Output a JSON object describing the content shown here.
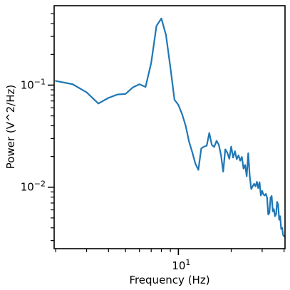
{
  "chart_data": {
    "type": "line",
    "title": "",
    "xlabel": "Frequency (Hz)",
    "ylabel": "Power (V^2/Hz)",
    "x_scale": "log",
    "y_scale": "log",
    "xlim": [
      1.96,
      40.5
    ],
    "ylim": [
      0.0025,
      0.6
    ],
    "grid": false,
    "legend": "none",
    "x_major_tick_labels": [
      {
        "value": 10,
        "base": "10",
        "exp": "1"
      }
    ],
    "y_major_tick_labels": [
      {
        "value": 0.1,
        "base": "10",
        "exp": "−1"
      },
      {
        "value": 0.01,
        "base": "10",
        "exp": "−2"
      }
    ],
    "x_minor_ticks": [
      2,
      3,
      4,
      5,
      6,
      7,
      8,
      9,
      20,
      30,
      40
    ],
    "y_minor_ticks": [
      0.003,
      0.004,
      0.005,
      0.006,
      0.007,
      0.008,
      0.009,
      0.02,
      0.03,
      0.04,
      0.05,
      0.06,
      0.07,
      0.08,
      0.09,
      0.2,
      0.3,
      0.4,
      0.5
    ],
    "series": [
      {
        "color": "#1f77b4",
        "x": [
          2.0,
          2.5,
          3.0,
          3.5,
          4.0,
          4.5,
          5.0,
          5.5,
          6.0,
          6.5,
          7.0,
          7.5,
          8.0,
          8.5,
          9.0,
          9.5,
          10.0,
          10.5,
          11.0,
          11.5,
          12.0,
          12.5,
          13.0,
          13.5,
          14.0,
          14.5,
          15.0,
          15.5,
          16.0,
          16.5,
          17.0,
          17.5,
          18.0,
          18.5,
          19.0,
          19.5,
          20.0,
          20.5,
          21.0,
          21.5,
          22.0,
          22.5,
          23.0,
          23.5,
          24.0,
          24.5,
          25.0,
          25.5,
          26.0,
          26.5,
          27.0,
          27.5,
          28.0,
          28.5,
          29.0,
          29.5,
          30.0,
          30.5,
          31.0,
          31.5,
          32.0,
          32.5,
          33.0,
          33.5,
          34.0,
          34.5,
          35.0,
          35.5,
          36.0,
          36.5,
          37.0,
          37.5,
          38.0,
          38.5,
          39.0,
          39.5,
          40.0
        ],
        "y": [
          0.11,
          0.102,
          0.085,
          0.066,
          0.075,
          0.081,
          0.082,
          0.095,
          0.102,
          0.096,
          0.165,
          0.38,
          0.45,
          0.31,
          0.15,
          0.072,
          0.064,
          0.052,
          0.04,
          0.028,
          0.022,
          0.017,
          0.0148,
          0.024,
          0.025,
          0.0255,
          0.034,
          0.026,
          0.0248,
          0.0285,
          0.026,
          0.0205,
          0.0142,
          0.0235,
          0.0218,
          0.019,
          0.025,
          0.0195,
          0.0225,
          0.0188,
          0.0205,
          0.0182,
          0.0198,
          0.0152,
          0.0165,
          0.0128,
          0.0215,
          0.0128,
          0.0096,
          0.0102,
          0.0108,
          0.0102,
          0.0113,
          0.0098,
          0.0112,
          0.0083,
          0.0092,
          0.0085,
          0.0083,
          0.0086,
          0.0079,
          0.0054,
          0.0056,
          0.0079,
          0.0082,
          0.0058,
          0.0061,
          0.0052,
          0.0054,
          0.0072,
          0.0068,
          0.0048,
          0.0052,
          0.0039,
          0.004,
          0.0034,
          0.0033
        ]
      }
    ]
  }
}
